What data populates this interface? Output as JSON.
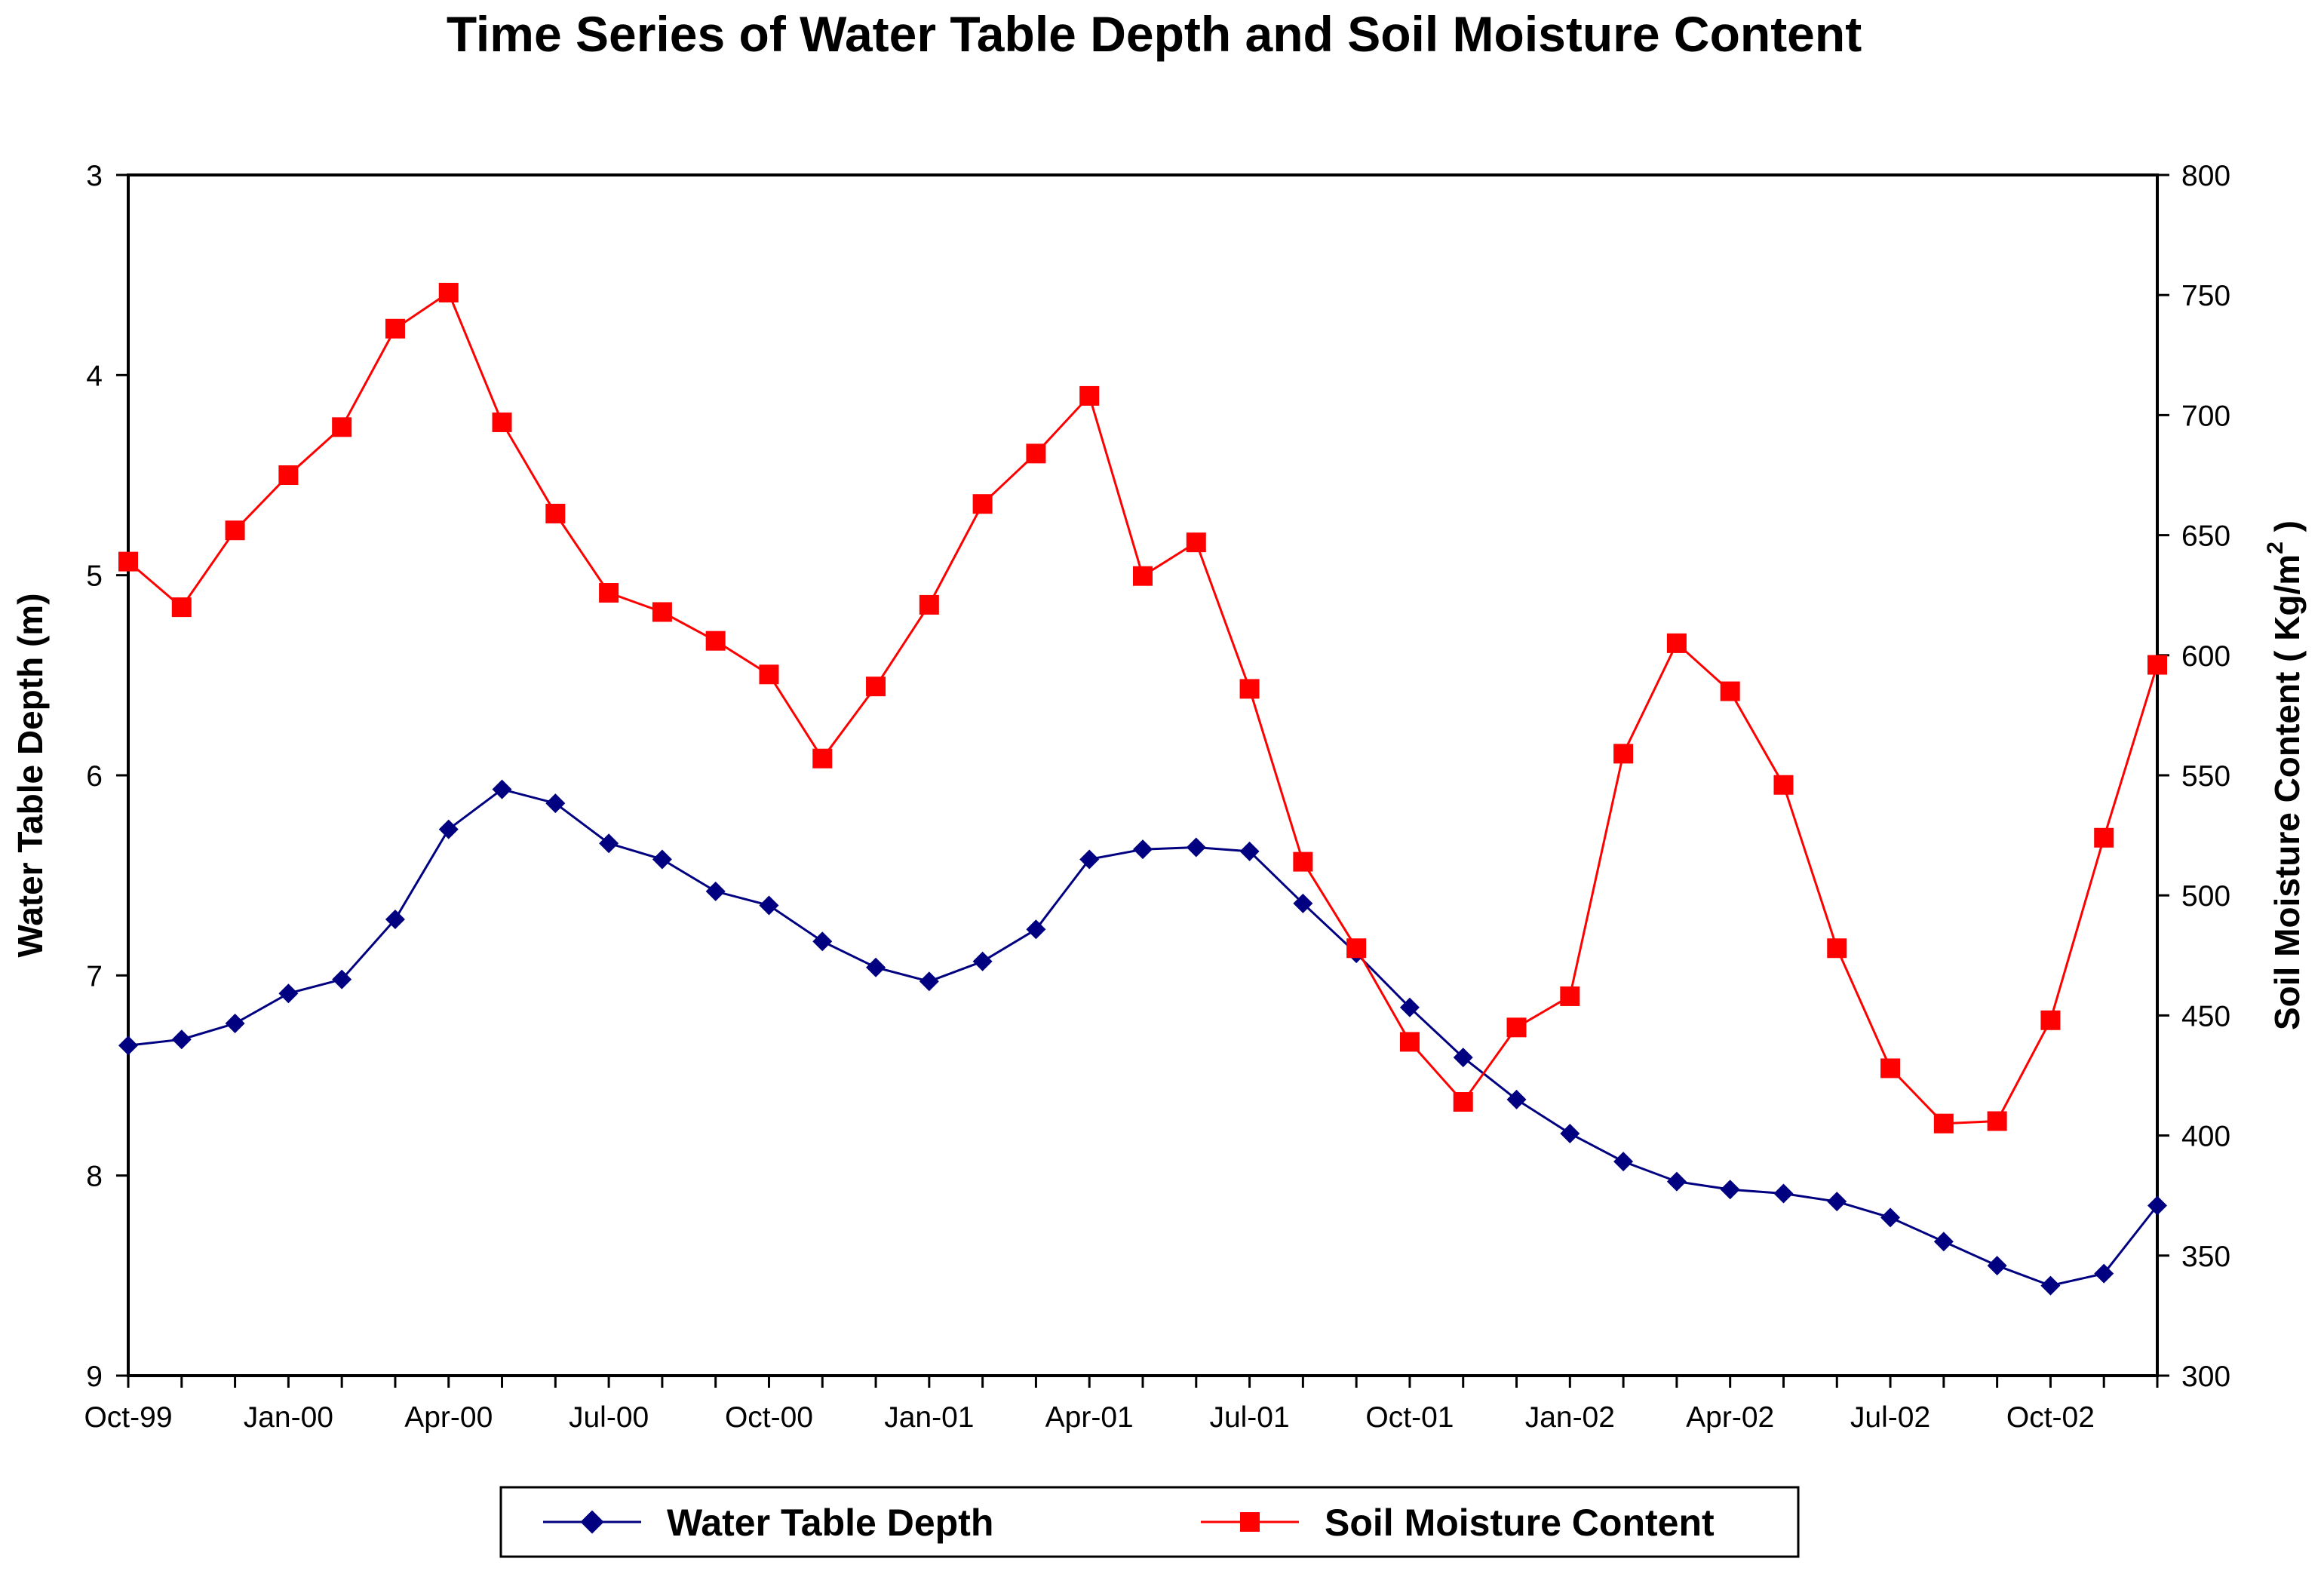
{
  "chart_data": {
    "type": "line",
    "title": "Time Series of Water Table Depth and Soil Moisture Content",
    "xlabel": "",
    "ylabel": "Water Table Depth (m)",
    "y2label": "Soil Moisture Content ( Kg/m",
    "y2label_sup": "2",
    "y2label_close": " )",
    "ylim": [
      3,
      9
    ],
    "y_inverted": true,
    "y2lim": [
      300,
      800
    ],
    "grid": false,
    "legend_position": "bottom-center",
    "x_tick_labels": [
      "Oct-99",
      "Jan-00",
      "Apr-00",
      "Jul-00",
      "Oct-00",
      "Jan-01",
      "Apr-01",
      "Jul-01",
      "Oct-01",
      "Jan-02",
      "Apr-02",
      "Jul-02",
      "Oct-02"
    ],
    "y_tick_labels": [
      "3",
      "4",
      "5",
      "6",
      "7",
      "8",
      "9"
    ],
    "y2_tick_labels": [
      "300",
      "350",
      "400",
      "450",
      "500",
      "550",
      "600",
      "650",
      "700",
      "750",
      "800"
    ],
    "x": [
      "Oct-99",
      "Nov-99",
      "Dec-99",
      "Jan-00",
      "Feb-00",
      "Mar-00",
      "Apr-00",
      "May-00",
      "Jun-00",
      "Jul-00",
      "Aug-00",
      "Sep-00",
      "Oct-00",
      "Nov-00",
      "Dec-00",
      "Jan-01",
      "Feb-01",
      "Mar-01",
      "Apr-01",
      "May-01",
      "Jun-01",
      "Jul-01",
      "Aug-01",
      "Sep-01",
      "Oct-01",
      "Nov-01",
      "Dec-01",
      "Jan-02",
      "Feb-02",
      "Mar-02",
      "Apr-02",
      "May-02",
      "Jun-02",
      "Jul-02",
      "Aug-02",
      "Sep-02",
      "Oct-02",
      "Nov-02",
      "Dec-02"
    ],
    "series": [
      {
        "name": "Water Table Depth",
        "axis": "left",
        "color": "#000080",
        "marker": "diamond",
        "values": [
          7.35,
          7.32,
          7.24,
          7.09,
          7.02,
          6.72,
          6.27,
          6.07,
          6.14,
          6.34,
          6.42,
          6.58,
          6.65,
          6.83,
          6.96,
          7.03,
          6.93,
          6.77,
          6.42,
          6.37,
          6.36,
          6.38,
          6.64,
          6.89,
          7.16,
          7.41,
          7.62,
          7.79,
          7.93,
          8.03,
          8.07,
          8.09,
          8.13,
          8.21,
          8.33,
          8.45,
          8.55,
          8.49,
          8.15
        ]
      },
      {
        "name": "Soil Moisture Content",
        "axis": "right",
        "color": "#ff0000",
        "marker": "square",
        "values": [
          639,
          620,
          652,
          675,
          695,
          736,
          751,
          697,
          659,
          626,
          618,
          606,
          592,
          557,
          587,
          621,
          663,
          684,
          708,
          633,
          647,
          586,
          514,
          478,
          439,
          414,
          445,
          458,
          559,
          605,
          585,
          546,
          478,
          428,
          405,
          406,
          448,
          524,
          596
        ]
      }
    ]
  }
}
